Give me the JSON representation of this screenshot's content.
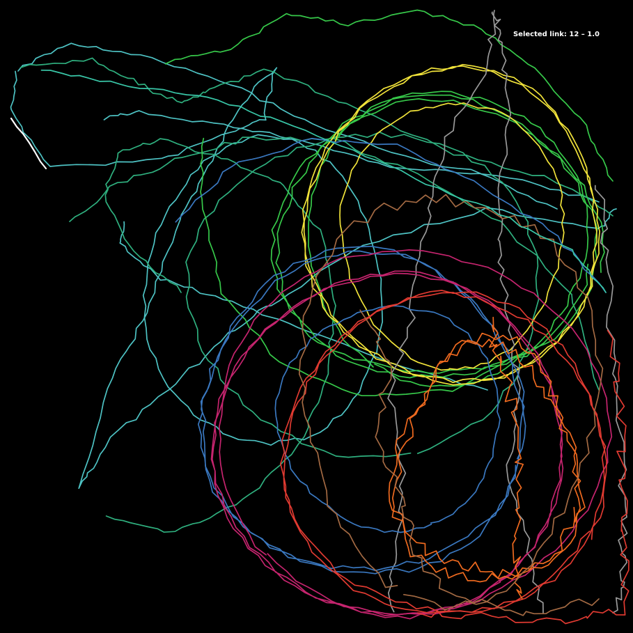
{
  "status": {
    "selected_prefix": "Selected link:",
    "selected_value": "12 – 1.0"
  },
  "selected_link": "12",
  "colors": {
    "background": "#000000",
    "selected": "#ffffff",
    "palette": [
      "#4ec3c4",
      "#2fb07f",
      "#37c94a",
      "#f1e33a",
      "#9a9a9a",
      "#3a78c0",
      "#c5246e",
      "#e03a31",
      "#ef6a1f",
      "#a46a43"
    ]
  },
  "links": [
    {
      "id": "1",
      "color": "#4ec3c4"
    },
    {
      "id": "2",
      "color": "#2fb07f"
    },
    {
      "id": "3",
      "color": "#37c94a"
    },
    {
      "id": "4",
      "color": "#f1e33a"
    },
    {
      "id": "5",
      "color": "#9a9a9a"
    },
    {
      "id": "6",
      "color": "#3a78c0"
    },
    {
      "id": "7",
      "color": "#c5246e"
    },
    {
      "id": "8",
      "color": "#e03a31"
    },
    {
      "id": "9",
      "color": "#ef6a1f"
    },
    {
      "id": "10",
      "color": "#a46a43"
    },
    {
      "id": "11",
      "color": "#39c7a8"
    },
    {
      "id": "12",
      "color": "#ffffff"
    }
  ]
}
